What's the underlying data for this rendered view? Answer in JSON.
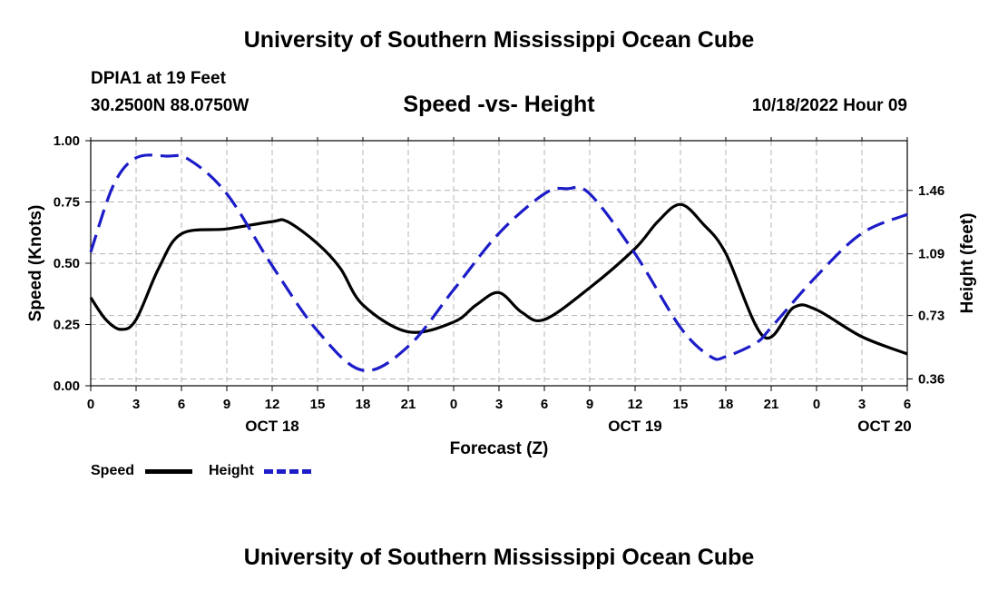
{
  "header": {
    "title": "University of Southern Mississippi Ocean Cube",
    "station": "DPIA1 at 19 Feet",
    "coords": "30.2500N  88.0750W",
    "issued": "10/18/2022 Hour 09"
  },
  "footer": {
    "title": "University of Southern Mississippi Ocean Cube"
  },
  "chart_data": {
    "type": "line",
    "title": "Speed -vs- Height",
    "xlabel": "Forecast (Z)",
    "ylabel_left": "Speed (Knots)",
    "ylabel_right": "Height (feet)",
    "x_hours_range": [
      0,
      54
    ],
    "x_tick_step_hours": 3,
    "x_tick_labels": [
      "0",
      "3",
      "6",
      "9",
      "12",
      "15",
      "18",
      "21",
      "0",
      "3",
      "6",
      "9",
      "12",
      "15",
      "18",
      "21",
      "0",
      "3",
      "6"
    ],
    "date_labels": [
      {
        "hour": 12,
        "label": "OCT 18"
      },
      {
        "hour": 36,
        "label": "OCT 19"
      },
      {
        "hour": 52.5,
        "label": "OCT 20"
      }
    ],
    "left_axis": {
      "ylim": [
        0,
        1.0
      ],
      "ticks": [
        0.0,
        0.25,
        0.5,
        0.75,
        1.0
      ],
      "tick_labels": [
        "0.00",
        "0.25",
        "0.50",
        "0.75",
        "1.00"
      ]
    },
    "right_axis": {
      "ylim": [
        0.32,
        1.75
      ],
      "ticks": [
        0.36,
        0.73,
        1.09,
        1.46
      ],
      "tick_labels": [
        "0.36",
        "0.73",
        "1.09",
        "1.46"
      ]
    },
    "legend": {
      "position": "bottom-left",
      "entries": [
        "Speed",
        "Height"
      ]
    },
    "colors": {
      "speed": "#000000",
      "height": "#1c1cc8",
      "grid": "#b4b4b4"
    },
    "series": [
      {
        "name": "Speed",
        "axis": "left",
        "style": "solid",
        "x": [
          0,
          1,
          2,
          3,
          4.5,
          6,
          9,
          12,
          13,
          15,
          16.5,
          18,
          21,
          24,
          25.5,
          27,
          28.5,
          30,
          33,
          36,
          37.5,
          39,
          40.5,
          42,
          44.5,
          46.5,
          48,
          51,
          54
        ],
        "y": [
          0.36,
          0.27,
          0.23,
          0.27,
          0.48,
          0.62,
          0.64,
          0.67,
          0.67,
          0.58,
          0.48,
          0.33,
          0.22,
          0.26,
          0.33,
          0.38,
          0.3,
          0.27,
          0.4,
          0.56,
          0.67,
          0.74,
          0.66,
          0.54,
          0.2,
          0.32,
          0.31,
          0.2,
          0.13
        ]
      },
      {
        "name": "Height",
        "axis": "right",
        "style": "dashed",
        "x": [
          0,
          1.5,
          3,
          5,
          6.5,
          9,
          12,
          15,
          18,
          21,
          24,
          27,
          30,
          31.5,
          33,
          36,
          39,
          41,
          42,
          44,
          45,
          48,
          51,
          54
        ],
        "y": [
          1.1,
          1.49,
          1.65,
          1.66,
          1.64,
          1.44,
          1.02,
          0.64,
          0.41,
          0.55,
          0.88,
          1.21,
          1.44,
          1.47,
          1.44,
          1.09,
          0.66,
          0.49,
          0.49,
          0.57,
          0.66,
          0.96,
          1.21,
          1.32
        ]
      }
    ]
  }
}
